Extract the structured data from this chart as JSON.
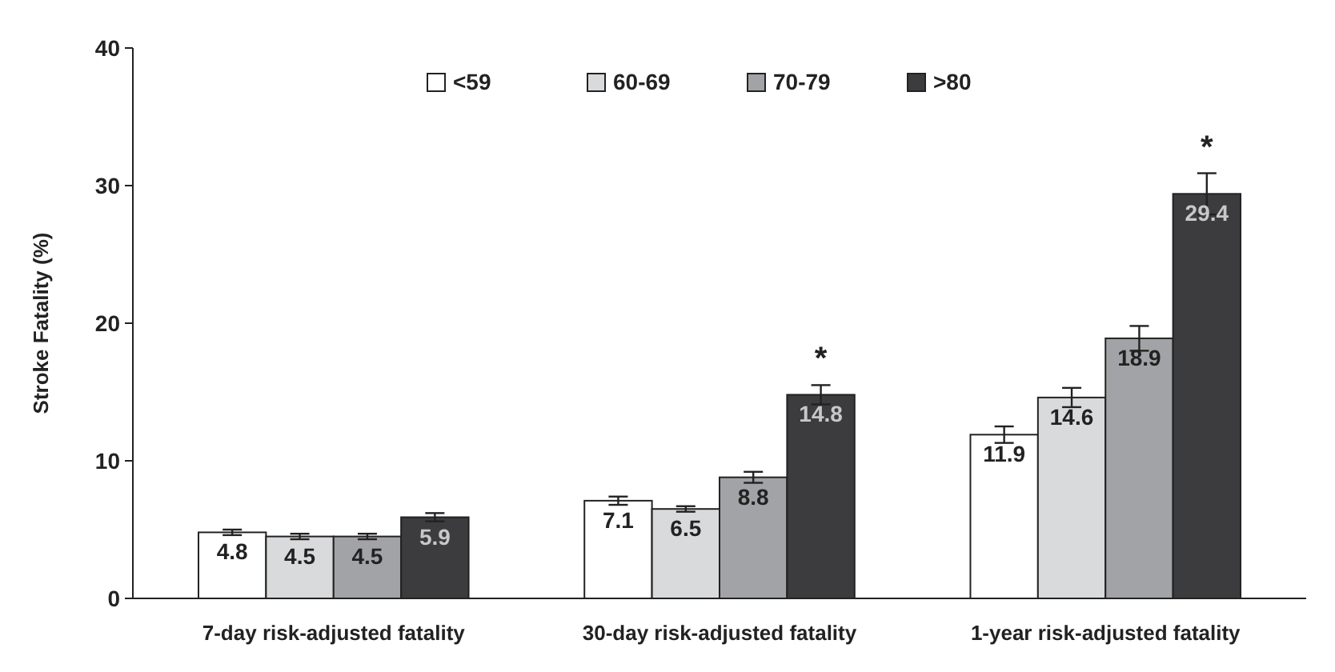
{
  "chart_data": {
    "type": "bar",
    "ylabel": "Stroke Fatality (%)",
    "categories": [
      "7-day risk-adjusted fatality",
      "30-day risk-adjusted fatality",
      "1-year risk-adjusted fatality"
    ],
    "series": [
      {
        "name": "<59",
        "color": "#ffffff",
        "values": [
          4.8,
          7.1,
          11.9
        ],
        "errors": [
          0.2,
          0.3,
          0.6
        ]
      },
      {
        "name": "60-69",
        "color": "#d9dadc",
        "values": [
          4.5,
          6.5,
          14.6
        ],
        "errors": [
          0.2,
          0.2,
          0.7
        ]
      },
      {
        "name": "70-79",
        "color": "#a2a3a6",
        "values": [
          4.5,
          8.8,
          18.9
        ],
        "errors": [
          0.2,
          0.4,
          0.9
        ]
      },
      {
        "name": ">80",
        "color": "#3c3c3e",
        "values": [
          5.9,
          14.8,
          29.4
        ],
        "errors": [
          0.3,
          0.7,
          1.5
        ]
      }
    ],
    "ylim": [
      0,
      40
    ],
    "yticks": [
      0,
      10,
      20,
      30,
      40
    ],
    "data_labels": true,
    "legend": "top",
    "annotations": [
      "*",
      "*"
    ]
  }
}
